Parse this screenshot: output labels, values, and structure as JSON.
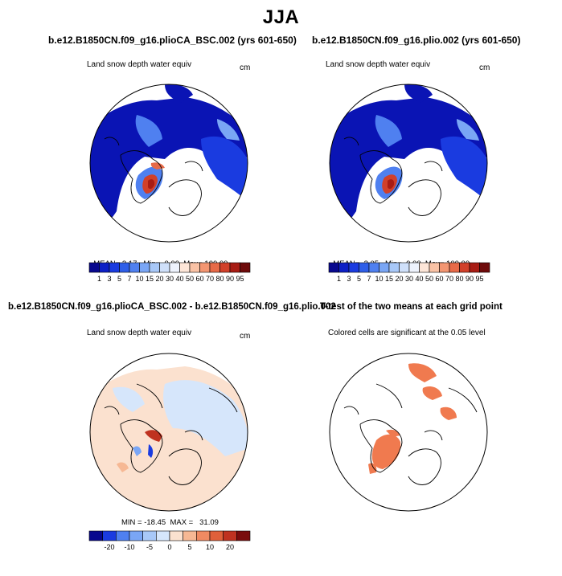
{
  "title": "JJA",
  "panels": [
    {
      "id": "top-left",
      "title": "b.e12.B1850CN.f09_g16.plioCA_BSC.002 (yrs 601-650)",
      "subtitle": "Land snow depth water equiv",
      "units": "cm",
      "stats": {
        "mean_label": "MEAN=",
        "mean": "3.17",
        "min_label": "Min=",
        "min": "0.00",
        "max_label": "Max=",
        "max": "100.00"
      }
    },
    {
      "id": "top-right",
      "title": "b.e12.B1850CN.f09_g16.plio.002 (yrs 601-650)",
      "subtitle": "Land snow depth water equiv",
      "units": "cm",
      "stats": {
        "mean_label": "MEAN=",
        "mean": "3.05",
        "min_label": "Min=",
        "min": "0.00",
        "max_label": "Max=",
        "max": "100.00"
      }
    },
    {
      "id": "bottom-left",
      "title": "b.e12.B1850CN.f09_g16.plioCA_BSC.002 - b.e12.B1850CN.f09_g16.plio.002",
      "subtitle": "Land snow depth water equiv",
      "units": "cm",
      "minmax": "MIN = -18.45  MAX =   31.09"
    },
    {
      "id": "bottom-right",
      "title": "T-test of the two means at each grid point",
      "subtitle": "Colored cells are significant at the 0.05 level"
    }
  ],
  "colorbar_levels": {
    "labels": [
      "1",
      "3",
      "5",
      "7",
      "10",
      "15",
      "20",
      "30",
      "40",
      "50",
      "60",
      "70",
      "80",
      "90",
      "95"
    ],
    "colors": [
      "#08088e",
      "#0c1fc6",
      "#1a3be0",
      "#2e5ee8",
      "#4f80f0",
      "#7aa6f5",
      "#a8c8f8",
      "#cfe0fa",
      "#eef3fd",
      "#fde6d8",
      "#f9c2a5",
      "#f39672",
      "#e76a48",
      "#d1402a",
      "#a81c14",
      "#6e0a0a"
    ]
  },
  "colorbar_diff": {
    "labels": [
      "-20",
      "-10",
      "-5",
      "0",
      "5",
      "10",
      "20"
    ],
    "colors": [
      "#08088e",
      "#1a3be0",
      "#4f80f0",
      "#7aa6f5",
      "#a8c8f8",
      "#d6e6fb",
      "#fbe1cf",
      "#f6b894",
      "#ef8a62",
      "#e0603a",
      "#bf3220",
      "#7a0c0c"
    ]
  }
}
